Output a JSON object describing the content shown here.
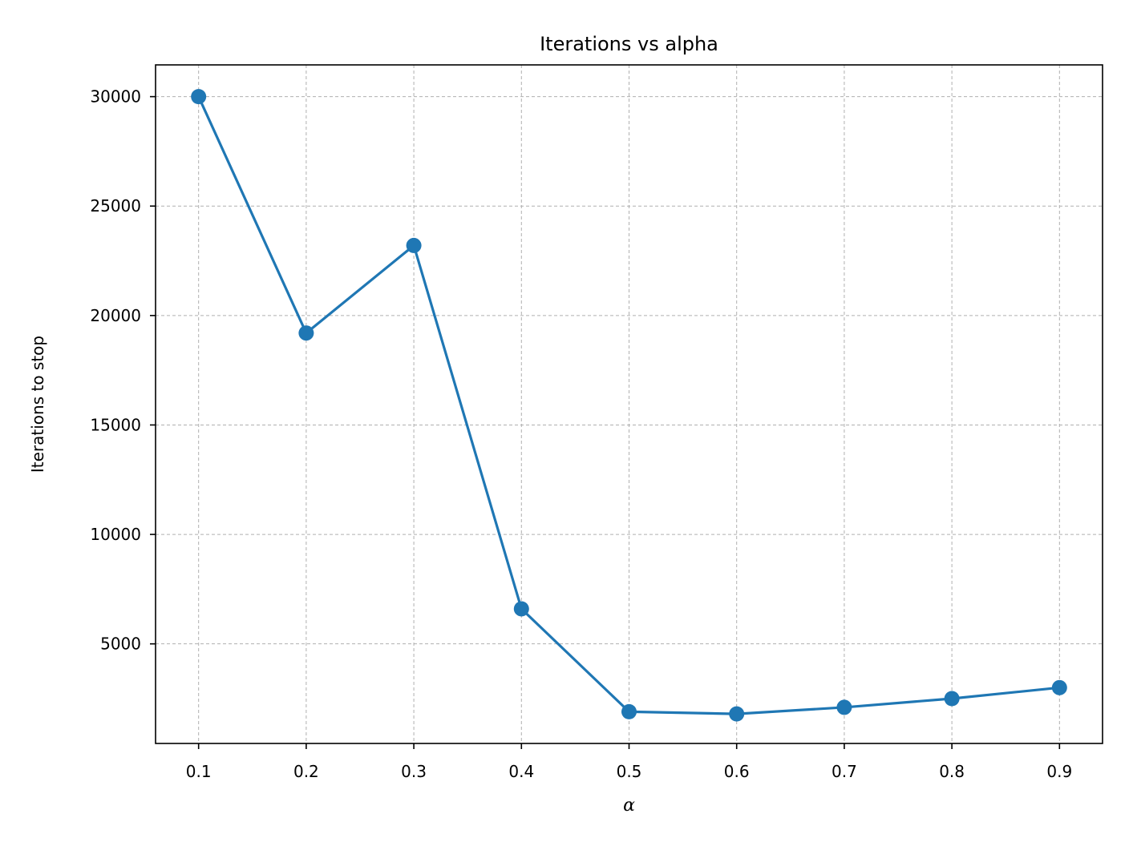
{
  "chart_data": {
    "type": "line",
    "title": "Iterations vs alpha",
    "xlabel": "α",
    "ylabel": "Iterations to stop",
    "x": [
      0.1,
      0.2,
      0.3,
      0.4,
      0.5,
      0.6,
      0.7,
      0.8,
      0.9
    ],
    "series": [
      {
        "values": [
          30000,
          19200,
          23200,
          6600,
          1900,
          1800,
          2100,
          2500,
          3000
        ],
        "color": "#1f77b4",
        "marker": "circle"
      }
    ],
    "xticks": [
      "0.1",
      "0.2",
      "0.3",
      "0.4",
      "0.5",
      "0.6",
      "0.7",
      "0.8",
      "0.9"
    ],
    "yticks": [
      {
        "value": 5000,
        "label": "5000"
      },
      {
        "value": 10000,
        "label": "10000"
      },
      {
        "value": 15000,
        "label": "15000"
      },
      {
        "value": 20000,
        "label": "20000"
      },
      {
        "value": 25000,
        "label": "25000"
      },
      {
        "value": 30000,
        "label": "30000"
      }
    ],
    "xlim": [
      0.06,
      0.94
    ],
    "ylim": [
      450,
      31450
    ],
    "grid": true
  }
}
